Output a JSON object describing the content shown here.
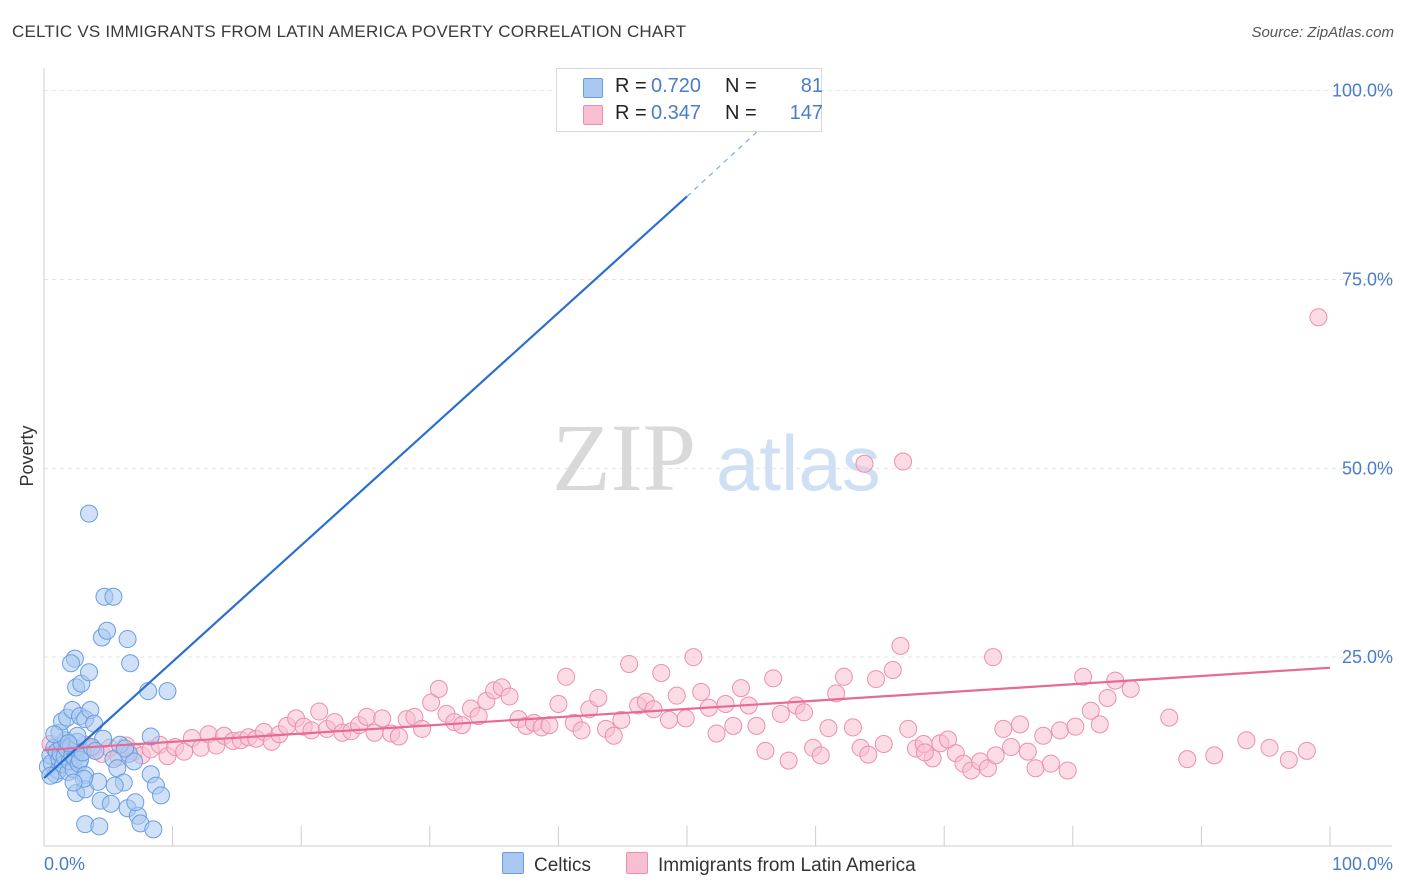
{
  "title": "CELTIC VS IMMIGRANTS FROM LATIN AMERICA POVERTY CORRELATION CHART",
  "source": "Source: ZipAtlas.com",
  "watermark": {
    "zip": "ZIP",
    "atlas": "atlas"
  },
  "legend": {
    "rows": [
      {
        "r_label": "R = ",
        "r_value": "0.720",
        "n_label": "N = ",
        "n_value": "81"
      },
      {
        "r_label": "R = ",
        "r_value": "0.347",
        "n_label": "N = ",
        "n_value": "147"
      }
    ]
  },
  "bottom_legend": {
    "celtics": "Celtics",
    "immigrants": "Immigrants from Latin America"
  },
  "chart_data": {
    "type": "scatter",
    "ylabel": "Poverty",
    "xlabel": "",
    "x_tick_labels": [
      "0.0%",
      "100.0%"
    ],
    "y_tick_labels": [
      "100.0%",
      "75.0%",
      "50.0%",
      "25.0%"
    ],
    "y_tick_values": [
      100,
      75,
      50,
      25
    ],
    "xlim": [
      0,
      100
    ],
    "ylim": [
      0,
      103
    ],
    "colors": {
      "celtics_fill": "#a9c8f0",
      "celtics_stroke": "#6a9ee0",
      "celtics_line": "#2a6fd0",
      "immigrants_fill": "#f7bfd0",
      "immigrants_stroke": "#ec8fae",
      "immigrants_line": "#e66a95",
      "grid": "#e4e4e4",
      "axis": "#cccccc",
      "tick_label": "#4a7cc9"
    },
    "series": [
      {
        "name": "Celtics",
        "trend": {
          "x1": 0,
          "y1": 9,
          "x2": 50,
          "y2": 86,
          "dash_to_x": 57,
          "dash_to_y": 97
        },
        "points": [
          [
            0.3,
            10.5
          ],
          [
            0.5,
            12
          ],
          [
            0.6,
            11
          ],
          [
            0.8,
            13
          ],
          [
            0.9,
            9.5
          ],
          [
            1,
            12.5
          ],
          [
            1.1,
            10
          ],
          [
            1.2,
            11.5
          ],
          [
            1.3,
            12.2
          ],
          [
            1.4,
            13.5
          ],
          [
            1.5,
            10.8
          ],
          [
            1.6,
            11.8
          ],
          [
            1.7,
            14
          ],
          [
            1.8,
            12.8
          ],
          [
            1.9,
            9.8
          ],
          [
            2,
            11.2
          ],
          [
            2.1,
            13.2
          ],
          [
            2.2,
            12
          ],
          [
            2.3,
            10.2
          ],
          [
            2.4,
            11.6
          ],
          [
            2.5,
            12.9
          ],
          [
            2.6,
            13.8
          ],
          [
            2.7,
            10.9
          ],
          [
            2.8,
            11.4
          ],
          [
            3,
            12.4
          ],
          [
            3.2,
            9.4
          ],
          [
            1.2,
            15
          ],
          [
            1.4,
            16.5
          ],
          [
            1.8,
            17
          ],
          [
            2.2,
            18
          ],
          [
            2.8,
            17.2
          ],
          [
            3.2,
            16.8
          ],
          [
            3.6,
            18
          ],
          [
            2.5,
            21
          ],
          [
            2.9,
            21.5
          ],
          [
            3.5,
            23
          ],
          [
            4.5,
            27.6
          ],
          [
            4.9,
            28.5
          ],
          [
            2.4,
            24.8
          ],
          [
            2.1,
            24.2
          ],
          [
            4.7,
            33
          ],
          [
            5.4,
            33
          ],
          [
            3.5,
            44
          ],
          [
            6.7,
            24.2
          ],
          [
            6.5,
            27.4
          ],
          [
            8.3,
            14.5
          ],
          [
            8.1,
            20.5
          ],
          [
            9.6,
            20.5
          ],
          [
            2.5,
            7
          ],
          [
            3.2,
            7.5
          ],
          [
            4.2,
            8.5
          ],
          [
            3.1,
            8.9
          ],
          [
            5.4,
            11.5
          ],
          [
            5.7,
            10.3
          ],
          [
            6.2,
            8.4
          ],
          [
            4.4,
            6
          ],
          [
            5.5,
            8
          ],
          [
            6.5,
            5
          ],
          [
            7.3,
            4
          ],
          [
            3.2,
            2.9
          ],
          [
            4.3,
            2.6
          ],
          [
            7.5,
            3
          ],
          [
            8.5,
            2.2
          ],
          [
            5.2,
            5.6
          ],
          [
            7.1,
            5.8
          ],
          [
            8.3,
            9.5
          ],
          [
            8.7,
            8
          ],
          [
            9.1,
            6.7
          ],
          [
            2.6,
            14.6
          ],
          [
            3.9,
            16.2
          ],
          [
            4.6,
            14.2
          ],
          [
            6.6,
            12.2
          ],
          [
            7.0,
            11.2
          ],
          [
            5.9,
            13.4
          ],
          [
            1.9,
            13.6
          ],
          [
            0.8,
            14.8
          ],
          [
            3.7,
            13.1
          ],
          [
            2.3,
            8.4
          ],
          [
            4.0,
            12.6
          ],
          [
            6.3,
            12.9
          ],
          [
            0.5,
            9.3
          ]
        ]
      },
      {
        "name": "Immigrants from Latin America",
        "trend": {
          "x1": 0,
          "y1": 12.7,
          "x2": 100,
          "y2": 23.6
        },
        "points": [
          [
            0.5,
            13.5
          ],
          [
            1.2,
            12.8
          ],
          [
            1.8,
            13.2
          ],
          [
            2.5,
            12.5
          ],
          [
            3.2,
            13.4
          ],
          [
            3.8,
            12.9
          ],
          [
            4.5,
            12.2
          ],
          [
            5.1,
            13.0
          ],
          [
            5.8,
            11.8
          ],
          [
            6.4,
            13.3
          ],
          [
            7.0,
            12.5
          ],
          [
            7.6,
            12.0
          ],
          [
            8.3,
            12.8
          ],
          [
            9.0,
            13.4
          ],
          [
            9.6,
            11.9
          ],
          [
            10.2,
            13.1
          ],
          [
            10.9,
            12.5
          ],
          [
            11.5,
            14.3
          ],
          [
            12.2,
            13.0
          ],
          [
            12.8,
            14.8
          ],
          [
            13.4,
            13.3
          ],
          [
            14.0,
            14.6
          ],
          [
            14.7,
            13.9
          ],
          [
            15.3,
            14.0
          ],
          [
            15.9,
            14.4
          ],
          [
            16.5,
            14.2
          ],
          [
            17.1,
            15.1
          ],
          [
            17.7,
            13.8
          ],
          [
            18.3,
            14.8
          ],
          [
            18.9,
            15.9
          ],
          [
            19.6,
            16.9
          ],
          [
            20.2,
            15.8
          ],
          [
            20.8,
            15.3
          ],
          [
            21.4,
            17.8
          ],
          [
            22.0,
            15.5
          ],
          [
            22.6,
            16.4
          ],
          [
            23.2,
            15.0
          ],
          [
            23.9,
            15.2
          ],
          [
            24.5,
            16.0
          ],
          [
            25.1,
            17.1
          ],
          [
            25.7,
            15.0
          ],
          [
            26.3,
            16.9
          ],
          [
            27.0,
            14.9
          ],
          [
            27.6,
            14.5
          ],
          [
            28.2,
            16.8
          ],
          [
            28.8,
            17.1
          ],
          [
            29.4,
            15.5
          ],
          [
            30.1,
            19.0
          ],
          [
            30.7,
            20.8
          ],
          [
            31.3,
            17.5
          ],
          [
            31.9,
            16.4
          ],
          [
            32.5,
            16.0
          ],
          [
            33.2,
            18.2
          ],
          [
            33.8,
            17.2
          ],
          [
            34.4,
            19.2
          ],
          [
            35.0,
            20.6
          ],
          [
            35.6,
            21.0
          ],
          [
            36.2,
            19.8
          ],
          [
            36.9,
            16.8
          ],
          [
            37.5,
            15.9
          ],
          [
            38.1,
            16.3
          ],
          [
            38.7,
            15.7
          ],
          [
            39.3,
            16.0
          ],
          [
            40.0,
            18.8
          ],
          [
            40.6,
            22.4
          ],
          [
            41.2,
            16.3
          ],
          [
            41.8,
            15.3
          ],
          [
            42.4,
            18.1
          ],
          [
            43.1,
            19.6
          ],
          [
            43.7,
            15.5
          ],
          [
            44.3,
            14.6
          ],
          [
            44.9,
            16.7
          ],
          [
            45.5,
            24.1
          ],
          [
            46.2,
            18.6
          ],
          [
            46.8,
            19.1
          ],
          [
            47.4,
            18.1
          ],
          [
            48.0,
            22.9
          ],
          [
            48.6,
            16.7
          ],
          [
            49.2,
            19.9
          ],
          [
            49.9,
            16.9
          ],
          [
            50.5,
            25.0
          ],
          [
            51.1,
            20.4
          ],
          [
            51.7,
            18.3
          ],
          [
            52.3,
            14.9
          ],
          [
            53.0,
            18.8
          ],
          [
            53.6,
            15.9
          ],
          [
            54.2,
            20.9
          ],
          [
            54.8,
            18.6
          ],
          [
            55.4,
            15.9
          ],
          [
            56.1,
            12.6
          ],
          [
            56.7,
            22.2
          ],
          [
            57.3,
            17.5
          ],
          [
            57.9,
            11.3
          ],
          [
            58.5,
            18.6
          ],
          [
            59.1,
            17.7
          ],
          [
            59.8,
            13.0
          ],
          [
            60.4,
            12.0
          ],
          [
            61.0,
            15.6
          ],
          [
            61.6,
            20.2
          ],
          [
            62.2,
            22.4
          ],
          [
            62.9,
            15.7
          ],
          [
            63.5,
            13.0
          ],
          [
            64.1,
            12.1
          ],
          [
            64.7,
            22.1
          ],
          [
            65.3,
            13.5
          ],
          [
            66.0,
            23.3
          ],
          [
            66.6,
            26.5
          ],
          [
            67.2,
            15.5
          ],
          [
            67.8,
            12.9
          ],
          [
            68.4,
            13.5
          ],
          [
            69.1,
            11.6
          ],
          [
            69.7,
            13.6
          ],
          [
            70.3,
            14.1
          ],
          [
            70.9,
            12.3
          ],
          [
            71.5,
            10.9
          ],
          [
            72.1,
            10.0
          ],
          [
            72.8,
            11.2
          ],
          [
            73.4,
            10.3
          ],
          [
            74.0,
            12.0
          ],
          [
            74.6,
            15.5
          ],
          [
            75.2,
            13.1
          ],
          [
            75.9,
            16.1
          ],
          [
            76.5,
            12.5
          ],
          [
            77.1,
            10.3
          ],
          [
            77.7,
            14.6
          ],
          [
            78.3,
            10.9
          ],
          [
            79.0,
            15.3
          ],
          [
            79.6,
            10.0
          ],
          [
            80.2,
            15.8
          ],
          [
            80.8,
            22.4
          ],
          [
            81.4,
            17.9
          ],
          [
            82.1,
            16.1
          ],
          [
            82.7,
            19.6
          ],
          [
            83.3,
            21.9
          ],
          [
            84.5,
            20.8
          ],
          [
            87.5,
            17.0
          ],
          [
            88.9,
            11.5
          ],
          [
            91.0,
            12.0
          ],
          [
            93.5,
            14.0
          ],
          [
            95.3,
            13.0
          ],
          [
            96.8,
            11.4
          ],
          [
            98.2,
            12.6
          ],
          [
            99.1,
            70.0
          ],
          [
            63.8,
            50.6
          ],
          [
            66.8,
            50.9
          ],
          [
            73.8,
            25.0
          ],
          [
            68.5,
            12.4
          ]
        ]
      }
    ]
  }
}
